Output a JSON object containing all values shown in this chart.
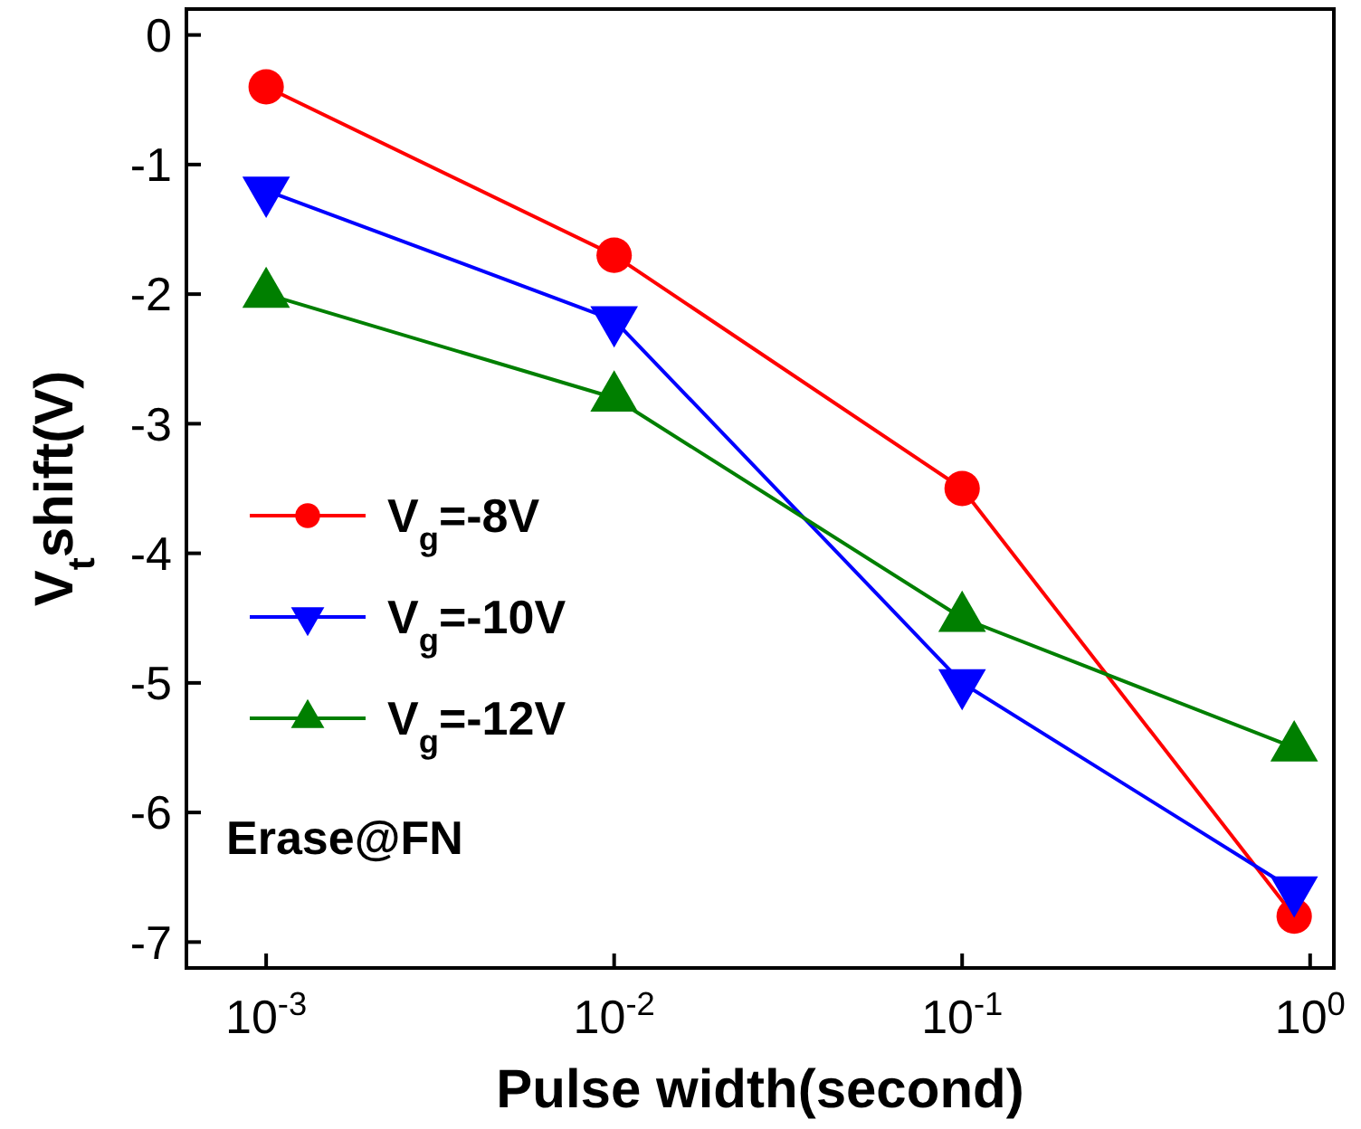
{
  "chart_data": {
    "type": "line",
    "xlabel": "Pulse width(second)",
    "ylabel": "V$_{t}$shift(V)",
    "log": "x",
    "x": [
      0.001,
      0.01,
      0.1,
      0.9
    ],
    "xlim": [
      0.00059,
      1.17
    ],
    "xticks": [
      {
        "value": 0.001,
        "label": "10$^{-3}$"
      },
      {
        "value": 0.01,
        "label": "10$^{-2}$"
      },
      {
        "value": 0.1,
        "label": "10$^{-1}$"
      },
      {
        "value": 1,
        "label": "10$^{0}$"
      }
    ],
    "ylim": [
      -7.2,
      0.2
    ],
    "yticks": [
      -7,
      -6,
      -5,
      -4,
      -3,
      -2,
      -1,
      0
    ],
    "legend": "left",
    "grid": false,
    "line_style": "solid",
    "series": [
      {
        "name": "V$_{g}$=-8V",
        "color": "#ff0000",
        "marker": "circle",
        "values": [
          -0.4,
          -1.7,
          -3.5,
          -6.8
        ]
      },
      {
        "name": "V$_{g}$=-10V",
        "color": "#0000ff",
        "marker": "triangle-down",
        "values": [
          -1.2,
          -2.2,
          -5.0,
          -6.6
        ]
      },
      {
        "name": "V$_{g}$=-12V",
        "color": "#007f00",
        "marker": "triangle",
        "values": [
          -2.0,
          -2.8,
          -4.5,
          -5.5
        ]
      }
    ],
    "annotations": [
      "Erase@FN"
    ]
  }
}
